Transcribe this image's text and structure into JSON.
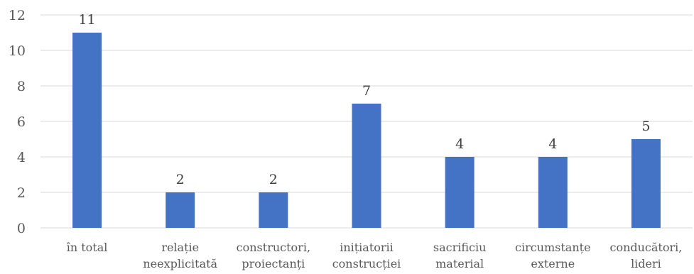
{
  "chart_data": {
    "type": "bar",
    "categories": [
      [
        "în total"
      ],
      [
        "relație",
        "neexplicitată"
      ],
      [
        "constructori,",
        "proiectanți"
      ],
      [
        "inițiatorii",
        "construcției"
      ],
      [
        "sacrificiu",
        "material"
      ],
      [
        "circumstanțe",
        "externe"
      ],
      [
        "conducători,",
        "lideri"
      ]
    ],
    "values": [
      11,
      2,
      2,
      7,
      4,
      4,
      5
    ],
    "data_labels": [
      "11",
      "2",
      "2",
      "7",
      "4",
      "4",
      "5"
    ],
    "y_ticks": [
      "0",
      "2",
      "4",
      "6",
      "8",
      "10",
      "12"
    ],
    "ylim": [
      0,
      12
    ],
    "title": "",
    "xlabel": "",
    "ylabel": "",
    "grid": true,
    "bar_color": "#4472c4"
  }
}
